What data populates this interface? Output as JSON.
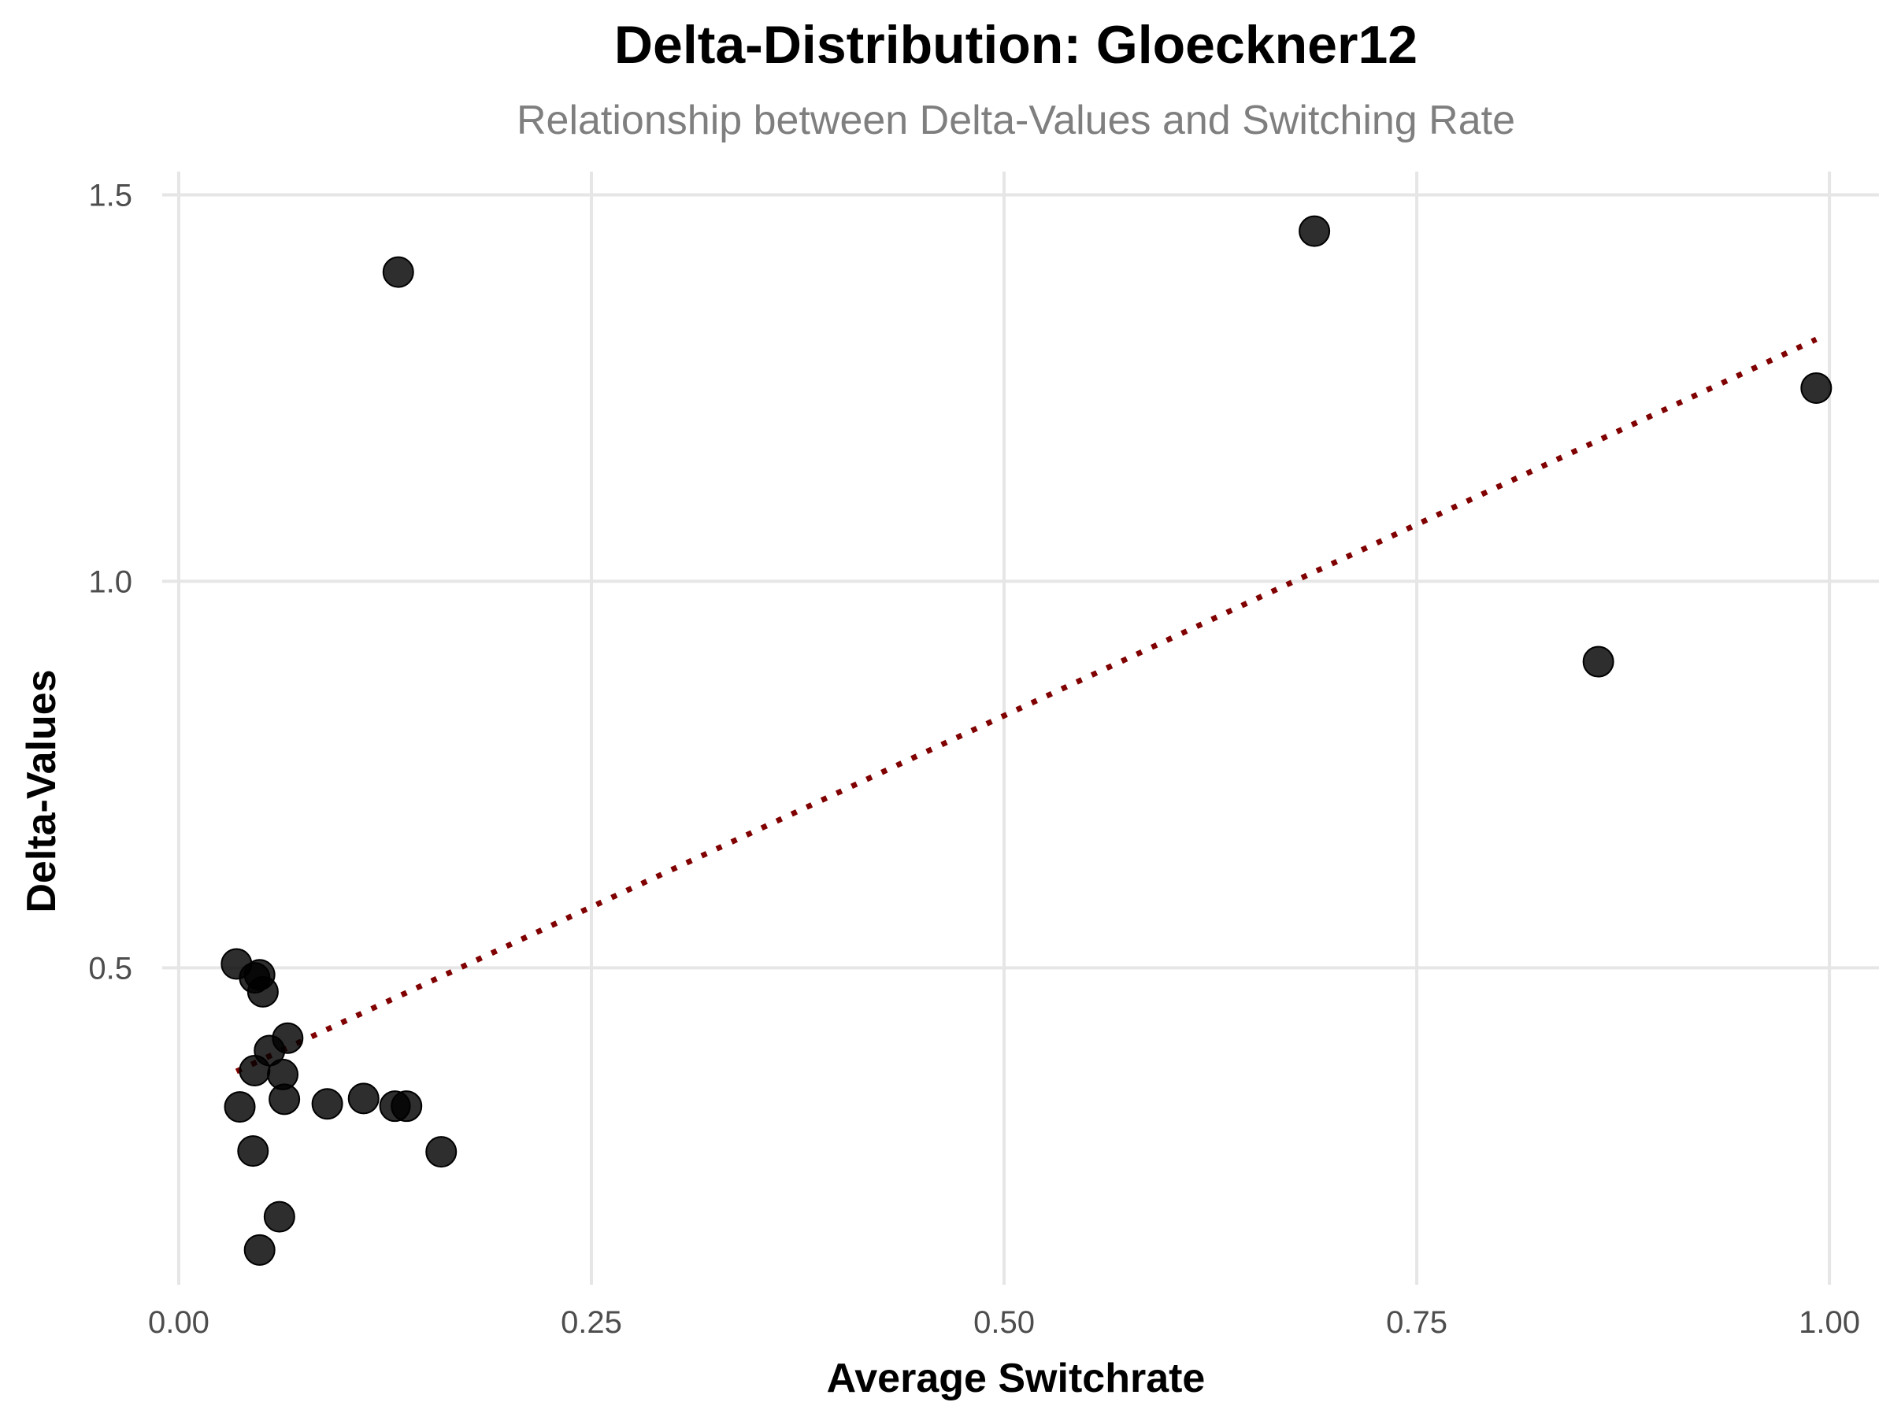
{
  "chart_data": {
    "type": "scatter",
    "title": "Delta-Distribution: Gloeckner12",
    "subtitle": "Relationship between Delta-Values and Switching Rate",
    "xlabel": "Average Switchrate",
    "ylabel": "Delta-Values",
    "xlim": [
      -0.01,
      1.03
    ],
    "ylim": [
      0.09,
      1.53
    ],
    "x_ticks": [
      0.0,
      0.25,
      0.5,
      0.75,
      1.0
    ],
    "x_tick_labels": [
      "0.00",
      "0.25",
      "0.50",
      "0.75",
      "1.00"
    ],
    "y_ticks": [
      0.5,
      1.0,
      1.5
    ],
    "y_tick_labels": [
      "0.5",
      "1.0",
      "1.5"
    ],
    "grid": true,
    "legend": "none",
    "colors": {
      "points": "#000000",
      "trend": "#800000",
      "grid": "#e6e6e6"
    },
    "points": [
      {
        "x": 0.035,
        "y": 0.505
      },
      {
        "x": 0.046,
        "y": 0.487
      },
      {
        "x": 0.049,
        "y": 0.491
      },
      {
        "x": 0.051,
        "y": 0.469
      },
      {
        "x": 0.066,
        "y": 0.409
      },
      {
        "x": 0.055,
        "y": 0.393
      },
      {
        "x": 0.046,
        "y": 0.367
      },
      {
        "x": 0.063,
        "y": 0.362
      },
      {
        "x": 0.037,
        "y": 0.32
      },
      {
        "x": 0.064,
        "y": 0.33
      },
      {
        "x": 0.09,
        "y": 0.324
      },
      {
        "x": 0.112,
        "y": 0.331
      },
      {
        "x": 0.131,
        "y": 0.321
      },
      {
        "x": 0.138,
        "y": 0.321
      },
      {
        "x": 0.045,
        "y": 0.263
      },
      {
        "x": 0.159,
        "y": 0.262
      },
      {
        "x": 0.061,
        "y": 0.178
      },
      {
        "x": 0.049,
        "y": 0.135
      },
      {
        "x": 0.133,
        "y": 1.4
      },
      {
        "x": 0.688,
        "y": 1.453
      },
      {
        "x": 0.86,
        "y": 0.896
      },
      {
        "x": 0.992,
        "y": 1.25
      }
    ],
    "trend_line": {
      "style": "dotted",
      "x": [
        0.035,
        0.992
      ],
      "y": [
        0.366,
        1.313
      ]
    }
  }
}
